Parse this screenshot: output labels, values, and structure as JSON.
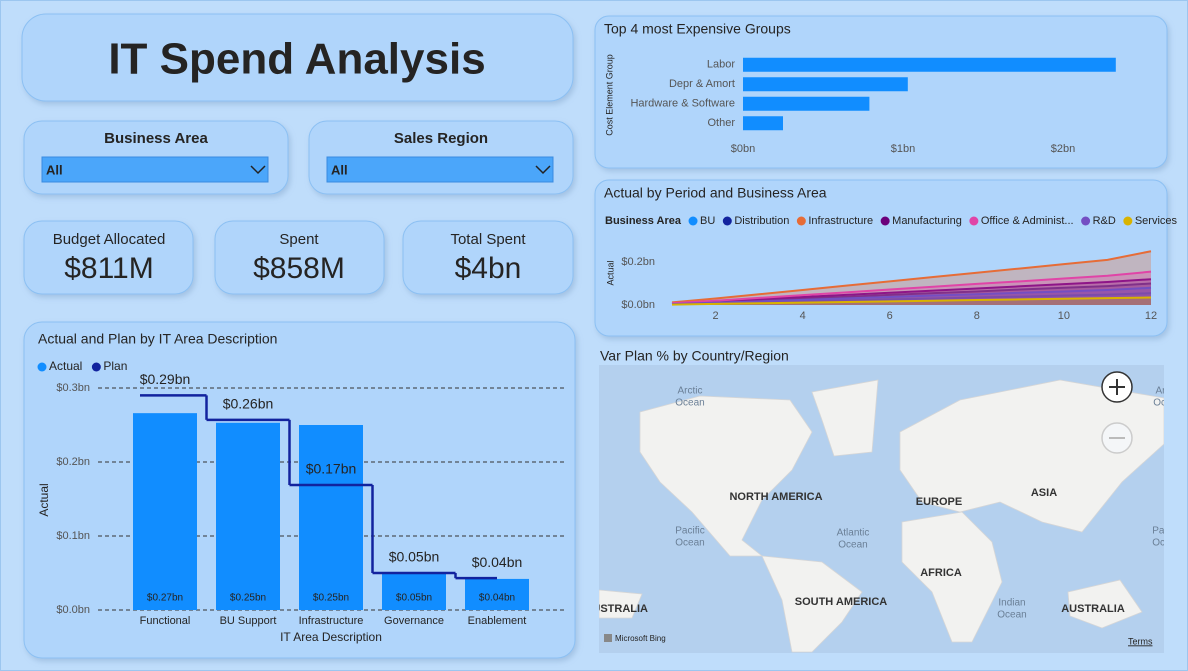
{
  "title": "IT Spend Analysis",
  "filters": [
    {
      "label": "Business Area",
      "value": "All"
    },
    {
      "label": "Sales Region",
      "value": "All"
    }
  ],
  "cards": [
    {
      "label": "Budget Allocated",
      "value": "$811M"
    },
    {
      "label": "Spent",
      "value": "$858M"
    },
    {
      "label": "Total Spent",
      "value": "$4bn"
    }
  ],
  "chart_data": [
    {
      "type": "bar",
      "orientation": "horizontal",
      "title": "Top 4 most Expensive Groups",
      "y_label": "Cost Element Group",
      "categories": [
        "Labor",
        "Depr & Amort",
        "Hardware & Software",
        "Other"
      ],
      "values": [
        2.33,
        1.03,
        0.79,
        0.25
      ],
      "color": "#118DFF",
      "xlim": [
        0,
        2.6
      ],
      "xticks": [
        {
          "value": 0,
          "label": "$0bn"
        },
        {
          "value": 1,
          "label": "$1bn"
        },
        {
          "value": 2,
          "label": "$2bn"
        }
      ]
    },
    {
      "type": "area",
      "title": "Actual by Period and Business Area",
      "legend_title": "Business Area",
      "y_label": "Actual",
      "x": [
        1,
        2,
        3,
        4,
        5,
        6,
        7,
        8,
        9,
        10,
        11,
        12
      ],
      "series": [
        {
          "name": "BU",
          "color": "#118DFF",
          "values": [
            0.003,
            0.008,
            0.012,
            0.017,
            0.021,
            0.026,
            0.03,
            0.035,
            0.039,
            0.044,
            0.048,
            0.055
          ]
        },
        {
          "name": "Distribution",
          "color": "#12239E",
          "values": [
            0.005,
            0.013,
            0.022,
            0.03,
            0.038,
            0.047,
            0.055,
            0.063,
            0.072,
            0.08,
            0.088,
            0.1
          ]
        },
        {
          "name": "Infrastructure",
          "color": "#E66C37",
          "values": [
            0.012,
            0.03,
            0.05,
            0.07,
            0.09,
            0.11,
            0.13,
            0.15,
            0.17,
            0.19,
            0.21,
            0.25
          ]
        },
        {
          "name": "Manufacturing",
          "color": "#6B007B",
          "values": [
            0.006,
            0.016,
            0.027,
            0.037,
            0.047,
            0.057,
            0.067,
            0.077,
            0.087,
            0.097,
            0.107,
            0.12
          ]
        },
        {
          "name": "Office & Administ...",
          "color": "#E044A7",
          "values": [
            0.008,
            0.02,
            0.033,
            0.046,
            0.059,
            0.072,
            0.085,
            0.098,
            0.11,
            0.123,
            0.136,
            0.155
          ]
        },
        {
          "name": "R&D",
          "color": "#744EC2",
          "values": [
            0.004,
            0.011,
            0.017,
            0.024,
            0.031,
            0.037,
            0.044,
            0.05,
            0.057,
            0.063,
            0.07,
            0.08
          ]
        },
        {
          "name": "Services",
          "color": "#D9B300",
          "values": [
            0.002,
            0.005,
            0.008,
            0.011,
            0.014,
            0.017,
            0.02,
            0.023,
            0.026,
            0.029,
            0.032,
            0.035
          ]
        }
      ],
      "xlim": [
        1,
        12
      ],
      "xticks": [
        2,
        4,
        6,
        8,
        10,
        12
      ],
      "ylim": [
        0,
        0.3
      ],
      "yticks": [
        {
          "value": 0,
          "label": "$0.0bn"
        },
        {
          "value": 0.2,
          "label": "$0.2bn"
        }
      ]
    },
    {
      "type": "combo",
      "title": "Actual and Plan by IT Area Description",
      "x_label": "IT Area Description",
      "y_label": "Actual",
      "categories": [
        "Functional",
        "BU Support",
        "Infrastructure",
        "Governance",
        "Enablement"
      ],
      "series": [
        {
          "name": "Actual",
          "kind": "bar",
          "color": "#118DFF",
          "values": [
            0.266,
            0.253,
            0.25,
            0.05,
            0.042
          ],
          "value_labels": [
            "$0.27bn",
            "$0.25bn",
            "$0.25bn",
            "$0.05bn",
            "$0.04bn"
          ]
        },
        {
          "name": "Plan",
          "kind": "step",
          "color": "#12239E",
          "values": [
            0.29,
            0.257,
            0.169,
            0.05,
            0.043
          ],
          "value_labels": [
            "$0.29bn",
            "$0.26bn",
            "$0.17bn",
            "$0.05bn",
            "$0.04bn"
          ]
        }
      ],
      "ylim": [
        0,
        0.3
      ],
      "yticks": [
        {
          "value": 0,
          "label": "$0.0bn"
        },
        {
          "value": 0.1,
          "label": "$0.1bn"
        },
        {
          "value": 0.2,
          "label": "$0.2bn"
        },
        {
          "value": 0.3,
          "label": "$0.3bn"
        }
      ],
      "grid": true
    }
  ],
  "map": {
    "title": "Var Plan % by Country/Region",
    "oceans": [
      [
        "Arctic",
        "Ocean"
      ],
      [
        "Arctic",
        "Ocean"
      ],
      [
        "Pacific",
        "Ocean"
      ],
      [
        "Atlantic",
        "Ocean"
      ],
      [
        "Indian",
        "Ocean"
      ],
      [
        "Pacific",
        "Ocean"
      ]
    ],
    "regions": [
      "NORTH AMERICA",
      "EUROPE",
      "ASIA",
      "AFRICA",
      "SOUTH AMERICA",
      "AUSTRALIA",
      "AUSTRALIA"
    ],
    "attribution": "Microsoft Bing",
    "terms": "Terms"
  }
}
